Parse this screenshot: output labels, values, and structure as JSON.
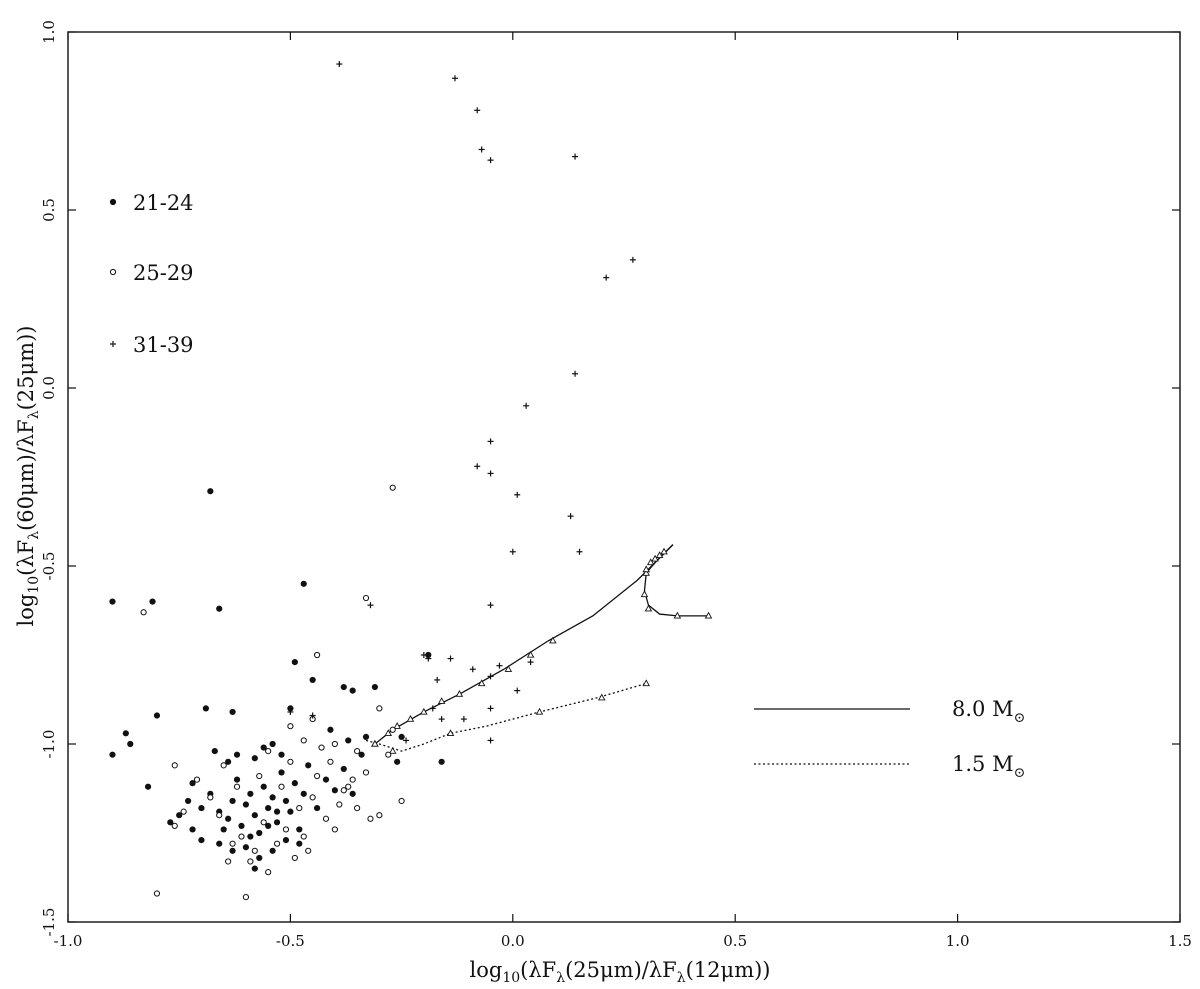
{
  "chart_data": {
    "type": "scatter",
    "title": "",
    "xlabel_parts": {
      "pre": "log",
      "sub1": "10",
      "mid": "(λF",
      "sub2": "λ",
      "mid2": "(25",
      "mu": "μ",
      "post": "m)/λF",
      "sub3": "λ",
      "mid3": "(12",
      "mu2": "μ",
      "end": "m))"
    },
    "ylabel_parts": {
      "pre": "log",
      "sub1": "10",
      "mid": "(λF",
      "sub2": "λ",
      "mid2": "(60",
      "mu": "μ",
      "post": "m)/λF",
      "sub3": "λ",
      "mid3": "(25",
      "mu2": "μ",
      "end": "m))"
    },
    "xlim": [
      -1.0,
      1.5
    ],
    "ylim": [
      -1.5,
      1.0
    ],
    "xticks": [
      "-1.0",
      "-0.5",
      "0.0",
      "0.5",
      "1.0",
      "1.5"
    ],
    "yticks": [
      "-1.5",
      "-1.0",
      "-0.5",
      "0.0",
      "0.5",
      "1.0"
    ],
    "xtick_values": [
      -1.0,
      -0.5,
      0.0,
      0.5,
      1.0,
      1.5
    ],
    "ytick_values": [
      -1.5,
      -1.0,
      -0.5,
      0.0,
      0.5,
      1.0
    ],
    "grid": false,
    "legend_position": "left",
    "legend": [
      {
        "label": "21-24",
        "marker": "filled-circle"
      },
      {
        "label": "25-29",
        "marker": "open-circle"
      },
      {
        "label": "31-39",
        "marker": "plus"
      }
    ],
    "track_legend_position": "lower-right",
    "track_legend": [
      {
        "label": "8.0",
        "unit": "M",
        "sub": "⊙",
        "style": "solid"
      },
      {
        "label": "1.5",
        "unit": "M",
        "sub": "⊙",
        "style": "dotted"
      }
    ],
    "series": [
      {
        "name": "21-24",
        "marker": "filled-circle",
        "points": [
          [
            -0.9,
            -0.6
          ],
          [
            -0.81,
            -0.6
          ],
          [
            -0.68,
            -0.29
          ],
          [
            -0.66,
            -0.62
          ],
          [
            -0.47,
            -0.55
          ],
          [
            -0.9,
            -1.03
          ],
          [
            -0.87,
            -0.97
          ],
          [
            -0.86,
            -1.0
          ],
          [
            -0.8,
            -0.92
          ],
          [
            -0.82,
            -1.12
          ],
          [
            -0.69,
            -0.9
          ],
          [
            -0.63,
            -0.91
          ],
          [
            -0.5,
            -0.9
          ],
          [
            -0.49,
            -0.77
          ],
          [
            -0.45,
            -0.82
          ],
          [
            -0.38,
            -0.84
          ],
          [
            -0.36,
            -0.85
          ],
          [
            -0.31,
            -0.84
          ],
          [
            -0.19,
            -0.75
          ],
          [
            -0.16,
            -1.05
          ],
          [
            -0.41,
            -0.96
          ],
          [
            -0.37,
            -0.99
          ],
          [
            -0.33,
            -0.98
          ],
          [
            -0.25,
            -0.98
          ],
          [
            -0.26,
            -1.05
          ],
          [
            -0.72,
            -1.11
          ],
          [
            -0.75,
            -1.2
          ],
          [
            -0.77,
            -1.22
          ],
          [
            -0.72,
            -1.24
          ],
          [
            -0.7,
            -1.27
          ],
          [
            -0.68,
            -1.14
          ],
          [
            -0.66,
            -1.19
          ],
          [
            -0.64,
            -1.21
          ],
          [
            -0.63,
            -1.16
          ],
          [
            -0.62,
            -1.1
          ],
          [
            -0.61,
            -1.23
          ],
          [
            -0.6,
            -1.17
          ],
          [
            -0.59,
            -1.14
          ],
          [
            -0.58,
            -1.2
          ],
          [
            -0.57,
            -1.25
          ],
          [
            -0.56,
            -1.12
          ],
          [
            -0.55,
            -1.18
          ],
          [
            -0.54,
            -1.15
          ],
          [
            -0.53,
            -1.22
          ],
          [
            -0.52,
            -1.08
          ],
          [
            -0.51,
            -1.16
          ],
          [
            -0.5,
            -1.19
          ],
          [
            -0.49,
            -1.11
          ],
          [
            -0.48,
            -1.24
          ],
          [
            -0.47,
            -1.14
          ],
          [
            -0.46,
            -1.06
          ],
          [
            -0.44,
            -1.18
          ],
          [
            -0.42,
            -1.1
          ],
          [
            -0.4,
            -1.13
          ],
          [
            -0.38,
            -1.07
          ],
          [
            -0.36,
            -1.14
          ],
          [
            -0.34,
            -1.03
          ],
          [
            -0.67,
            -1.02
          ],
          [
            -0.64,
            -1.05
          ],
          [
            -0.62,
            -1.03
          ],
          [
            -0.58,
            -1.04
          ],
          [
            -0.56,
            -1.01
          ],
          [
            -0.54,
            -1.0
          ],
          [
            -0.52,
            -1.03
          ],
          [
            -0.66,
            -1.28
          ],
          [
            -0.63,
            -1.3
          ],
          [
            -0.6,
            -1.29
          ],
          [
            -0.57,
            -1.32
          ],
          [
            -0.54,
            -1.3
          ],
          [
            -0.51,
            -1.27
          ],
          [
            -0.48,
            -1.28
          ],
          [
            -0.73,
            -1.16
          ],
          [
            -0.7,
            -1.18
          ],
          [
            -0.65,
            -1.24
          ],
          [
            -0.59,
            -1.26
          ],
          [
            -0.55,
            -1.23
          ],
          [
            -0.53,
            -1.19
          ],
          [
            -0.58,
            -1.35
          ]
        ]
      },
      {
        "name": "25-29",
        "marker": "open-circle",
        "points": [
          [
            -0.27,
            -0.28
          ],
          [
            -0.33,
            -0.59
          ],
          [
            -0.83,
            -0.63
          ],
          [
            -0.44,
            -0.75
          ],
          [
            -0.8,
            -1.42
          ],
          [
            -0.6,
            -1.43
          ],
          [
            -0.76,
            -1.06
          ],
          [
            -0.55,
            -1.02
          ],
          [
            -0.5,
            -0.95
          ],
          [
            -0.45,
            -0.93
          ],
          [
            -0.4,
            -1.0
          ],
          [
            -0.35,
            -1.02
          ],
          [
            -0.3,
            -0.9
          ],
          [
            -0.28,
            -1.03
          ],
          [
            -0.33,
            -1.08
          ],
          [
            -0.37,
            -1.12
          ],
          [
            -0.39,
            -1.17
          ],
          [
            -0.42,
            -1.21
          ],
          [
            -0.45,
            -1.15
          ],
          [
            -0.47,
            -1.26
          ],
          [
            -0.49,
            -1.32
          ],
          [
            -0.51,
            -1.24
          ],
          [
            -0.53,
            -1.28
          ],
          [
            -0.56,
            -1.22
          ],
          [
            -0.58,
            -1.3
          ],
          [
            -0.61,
            -1.26
          ],
          [
            -0.64,
            -1.33
          ],
          [
            -0.66,
            -1.2
          ],
          [
            -0.68,
            -1.15
          ],
          [
            -0.71,
            -1.1
          ],
          [
            -0.74,
            -1.19
          ],
          [
            -0.76,
            -1.23
          ],
          [
            -0.35,
            -1.18
          ],
          [
            -0.32,
            -1.21
          ],
          [
            -0.3,
            -1.2
          ],
          [
            -0.25,
            -1.16
          ],
          [
            -0.43,
            -1.01
          ],
          [
            -0.47,
            -0.99
          ],
          [
            -0.52,
            -1.12
          ],
          [
            -0.57,
            -1.09
          ],
          [
            -0.62,
            -1.12
          ],
          [
            -0.65,
            -1.06
          ],
          [
            -0.41,
            -1.05
          ],
          [
            -0.38,
            -1.13
          ],
          [
            -0.48,
            -1.18
          ],
          [
            -0.55,
            -1.36
          ],
          [
            -0.46,
            -1.3
          ],
          [
            -0.59,
            -1.33
          ],
          [
            -0.63,
            -1.28
          ],
          [
            -0.4,
            -1.24
          ],
          [
            -0.36,
            -1.1
          ],
          [
            -0.44,
            -1.09
          ],
          [
            -0.5,
            -1.05
          ],
          [
            -0.27,
            -0.96
          ]
        ]
      },
      {
        "name": "31-39",
        "marker": "plus",
        "points": [
          [
            -0.39,
            0.91
          ],
          [
            -0.13,
            0.87
          ],
          [
            -0.08,
            0.78
          ],
          [
            -0.07,
            0.67
          ],
          [
            -0.05,
            0.64
          ],
          [
            0.14,
            0.65
          ],
          [
            0.27,
            0.36
          ],
          [
            0.21,
            0.31
          ],
          [
            0.14,
            0.04
          ],
          [
            0.03,
            -0.05
          ],
          [
            -0.05,
            -0.15
          ],
          [
            -0.08,
            -0.22
          ],
          [
            -0.05,
            -0.24
          ],
          [
            0.01,
            -0.3
          ],
          [
            0.13,
            -0.36
          ],
          [
            0.0,
            -0.46
          ],
          [
            0.15,
            -0.46
          ],
          [
            -0.05,
            -0.61
          ],
          [
            -0.32,
            -0.61
          ],
          [
            -0.2,
            -0.75
          ],
          [
            -0.19,
            -0.76
          ],
          [
            -0.14,
            -0.76
          ],
          [
            -0.17,
            -0.82
          ],
          [
            -0.09,
            -0.79
          ],
          [
            -0.05,
            -0.81
          ],
          [
            -0.03,
            -0.78
          ],
          [
            0.04,
            -0.77
          ],
          [
            0.01,
            -0.85
          ],
          [
            -0.05,
            -0.9
          ],
          [
            -0.11,
            -0.93
          ],
          [
            -0.18,
            -0.9
          ],
          [
            -0.16,
            -0.93
          ],
          [
            -0.24,
            -0.99
          ],
          [
            -0.05,
            -0.99
          ],
          [
            -0.5,
            -0.91
          ],
          [
            -0.45,
            -0.92
          ]
        ]
      }
    ],
    "tracks": [
      {
        "name": "8.0 M⊙",
        "style": "solid",
        "points": [
          [
            -0.31,
            -1.0
          ],
          [
            -0.27,
            -0.96
          ],
          [
            -0.2,
            -0.91
          ],
          [
            -0.12,
            -0.86
          ],
          [
            -0.02,
            -0.79
          ],
          [
            0.08,
            -0.71
          ],
          [
            0.18,
            -0.64
          ],
          [
            0.28,
            -0.54
          ],
          [
            0.36,
            -0.44
          ]
        ],
        "markers": [
          [
            -0.31,
            -1.0
          ],
          [
            -0.28,
            -0.97
          ],
          [
            -0.26,
            -0.95
          ],
          [
            -0.23,
            -0.93
          ],
          [
            -0.2,
            -0.91
          ],
          [
            -0.16,
            -0.88
          ],
          [
            -0.12,
            -0.86
          ],
          [
            -0.07,
            -0.83
          ],
          [
            -0.01,
            -0.79
          ],
          [
            0.04,
            -0.75
          ],
          [
            0.09,
            -0.71
          ],
          [
            0.3,
            -0.51
          ],
          [
            0.31,
            -0.49
          ],
          [
            0.32,
            -0.48
          ],
          [
            0.33,
            -0.47
          ],
          [
            0.34,
            -0.46
          ]
        ],
        "hook": [
          [
            0.36,
            -0.44
          ],
          [
            0.32,
            -0.49
          ],
          [
            0.3,
            -0.52
          ],
          [
            0.296,
            -0.57
          ],
          [
            0.305,
            -0.61
          ],
          [
            0.33,
            -0.635
          ],
          [
            0.37,
            -0.64
          ],
          [
            0.41,
            -0.64
          ],
          [
            0.44,
            -0.64
          ]
        ],
        "hook_markers": [
          [
            0.3,
            -0.52
          ],
          [
            0.296,
            -0.58
          ],
          [
            0.305,
            -0.62
          ],
          [
            0.37,
            -0.64
          ],
          [
            0.44,
            -0.64
          ]
        ]
      },
      {
        "name": "1.5 M⊙",
        "style": "dotted",
        "points": [
          [
            -0.33,
            -0.99
          ],
          [
            -0.3,
            -1.0
          ],
          [
            -0.25,
            -1.02
          ],
          [
            -0.2,
            -1.0
          ],
          [
            -0.14,
            -0.97
          ],
          [
            -0.06,
            -0.95
          ],
          [
            0.06,
            -0.91
          ],
          [
            0.19,
            -0.87
          ],
          [
            0.3,
            -0.83
          ]
        ],
        "markers": [
          [
            -0.31,
            -1.0
          ],
          [
            -0.27,
            -1.02
          ],
          [
            -0.14,
            -0.97
          ],
          [
            0.06,
            -0.91
          ],
          [
            0.2,
            -0.87
          ],
          [
            0.3,
            -0.83
          ]
        ]
      }
    ]
  }
}
